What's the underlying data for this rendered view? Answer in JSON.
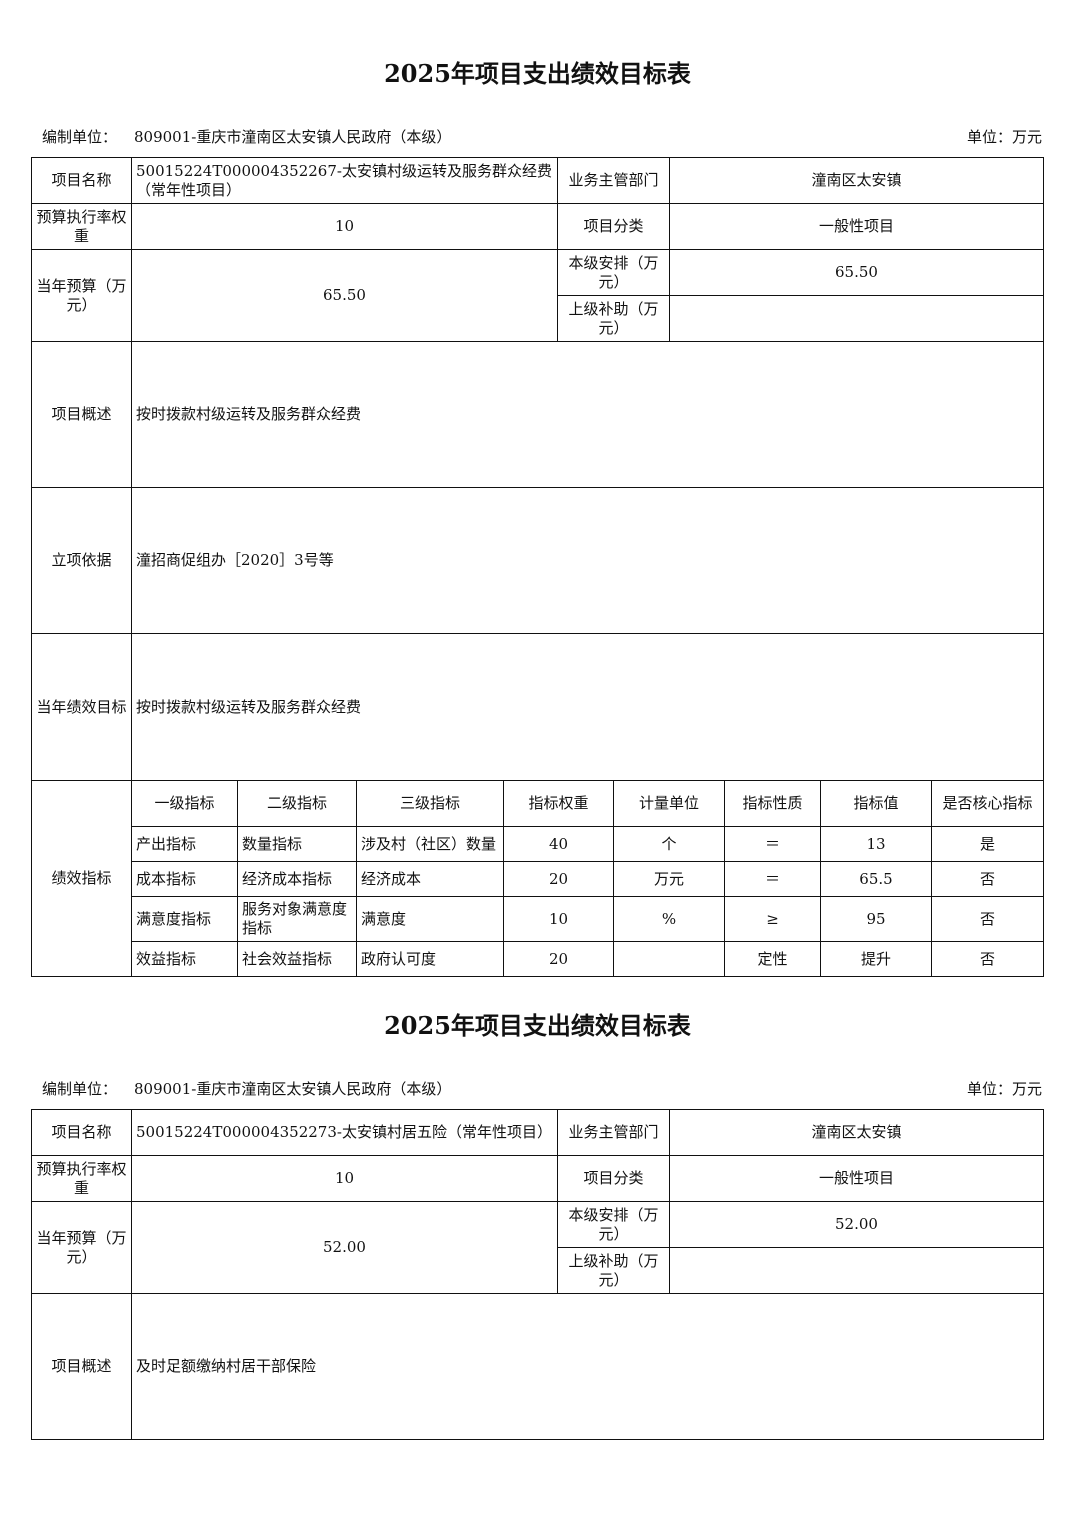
{
  "sections": [
    {
      "title": "2025年项目支出绩效目标表",
      "org_label": "编制单位：",
      "org": "809001-重庆市潼南区太安镇人民政府（本级）",
      "unit": "单位：万元",
      "labels": {
        "name": "项目名称",
        "dept": "业务主管部门",
        "weight": "预算执行率权重",
        "category": "项目分类",
        "budget": "当年预算（万元）",
        "local": "本级安排（万元）",
        "upper": "上级补助（万元）",
        "overview": "项目概述",
        "basis": "立项依据",
        "goal": "当年绩效目标",
        "indicators": "绩效指标"
      },
      "name": "50015224T000004352267-太安镇村级运转及服务群众经费（常年性项目）",
      "dept": "潼南区太安镇",
      "weight": "10",
      "category": "一般性项目",
      "budget": "65.50",
      "local": "65.50",
      "upper": "",
      "overview": "按时拨款村级运转及服务群众经费",
      "basis": "潼招商促组办［2020］3号等",
      "goal": "按时拨款村级运转及服务群众经费",
      "ind_headers": [
        "一级指标",
        "二级指标",
        "三级指标",
        "指标权重",
        "计量单位",
        "指标性质",
        "指标值",
        "是否核心指标"
      ],
      "ind_rows": [
        [
          "产出指标",
          "数量指标",
          "涉及村（社区）数量",
          "40",
          "个",
          "＝",
          "13",
          "是"
        ],
        [
          "成本指标",
          "经济成本指标",
          "经济成本",
          "20",
          "万元",
          "＝",
          "65.5",
          "否"
        ],
        [
          "满意度指标",
          "服务对象满意度指标",
          "满意度",
          "10",
          "%",
          "≥",
          "95",
          "否"
        ],
        [
          "效益指标",
          "社会效益指标",
          "政府认可度",
          "20",
          "",
          "定性",
          "提升",
          "否"
        ]
      ]
    },
    {
      "title": "2025年项目支出绩效目标表",
      "org_label": "编制单位：",
      "org": "809001-重庆市潼南区太安镇人民政府（本级）",
      "unit": "单位：万元",
      "labels": {
        "name": "项目名称",
        "dept": "业务主管部门",
        "weight": "预算执行率权重",
        "category": "项目分类",
        "budget": "当年预算（万元）",
        "local": "本级安排（万元）",
        "upper": "上级补助（万元）",
        "overview": "项目概述"
      },
      "name": "50015224T000004352273-太安镇村居五险（常年性项目）",
      "dept": "潼南区太安镇",
      "weight": "10",
      "category": "一般性项目",
      "budget": "52.00",
      "local": "52.00",
      "upper": "",
      "overview": "及时足额缴纳村居干部保险"
    }
  ]
}
